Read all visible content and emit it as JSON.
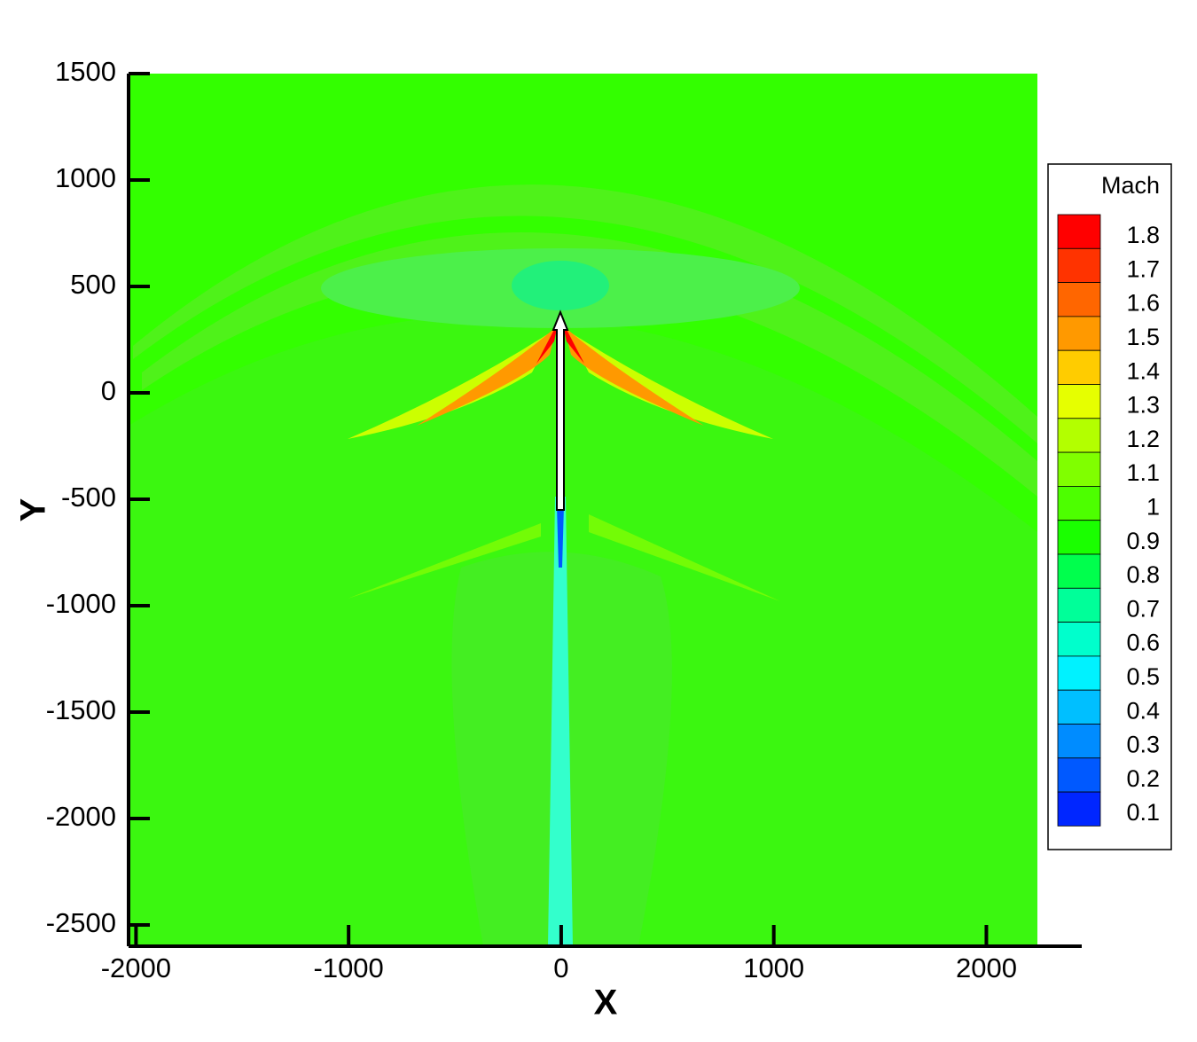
{
  "chart_data": {
    "type": "contour",
    "x_label": "X",
    "y_label": "Y",
    "xlim": [
      -2035,
      2240
    ],
    "ylim": [
      -2600,
      1500
    ],
    "xticks": [
      -2000,
      -1000,
      0,
      1000,
      2000
    ],
    "yticks": [
      -2500,
      -2000,
      -1500,
      -1000,
      -500,
      0,
      500,
      1000,
      1500
    ],
    "field_color": "#33ff00",
    "legend": {
      "title": "Mach",
      "levels": [
        1.8,
        1.7,
        1.6,
        1.5,
        1.4,
        1.3,
        1.2,
        1.1,
        1,
        0.9,
        0.8,
        0.7,
        0.6,
        0.5,
        0.4,
        0.3,
        0.2,
        0.1
      ],
      "colors": [
        "#ff0000",
        "#ff3300",
        "#ff6600",
        "#ff9900",
        "#ffcc00",
        "#e6ff00",
        "#b3ff00",
        "#80ff00",
        "#4dff00",
        "#1aff00",
        "#00ff4d",
        "#00ff99",
        "#00ffcc",
        "#00f2ff",
        "#00bfff",
        "#008cff",
        "#0059ff",
        "#0026ff"
      ]
    }
  }
}
